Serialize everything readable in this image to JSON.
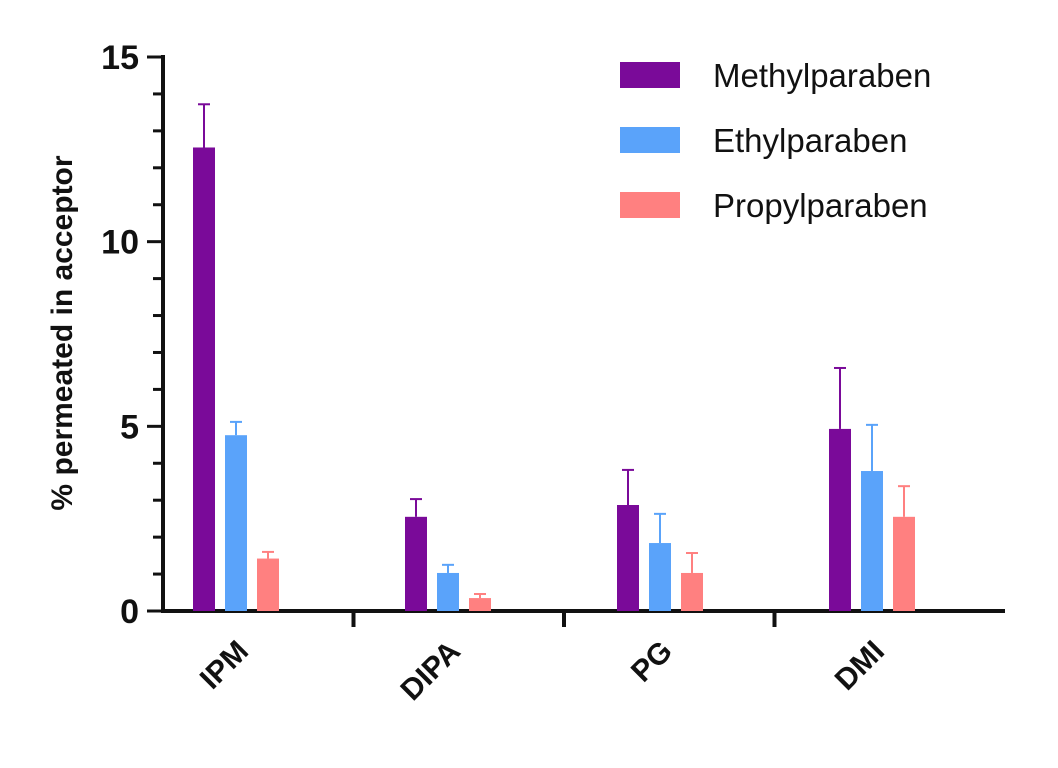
{
  "chart_data": {
    "type": "bar",
    "title": "",
    "xlabel": "",
    "ylabel": "% permeated in acceptor",
    "ylim": [
      0,
      15
    ],
    "yticks": [
      "0",
      "5",
      "10",
      "15"
    ],
    "categories": [
      "IPM",
      "DIPA",
      "PG",
      "DMI"
    ],
    "legend_position": "top-right",
    "series": [
      {
        "name": "Methylparaben",
        "color": "#7A0A99",
        "values": [
          12.55,
          2.55,
          2.87,
          4.93
        ],
        "errors": [
          1.17,
          0.48,
          0.95,
          1.65
        ]
      },
      {
        "name": "Ethylparaben",
        "color": "#5AA3FA",
        "values": [
          4.76,
          1.03,
          1.84,
          3.79
        ],
        "errors": [
          0.36,
          0.22,
          0.79,
          1.25
        ]
      },
      {
        "name": "Propylparaben",
        "color": "#FF8080",
        "values": [
          1.42,
          0.35,
          1.03,
          2.55
        ],
        "errors": [
          0.18,
          0.11,
          0.54,
          0.83
        ]
      }
    ]
  }
}
